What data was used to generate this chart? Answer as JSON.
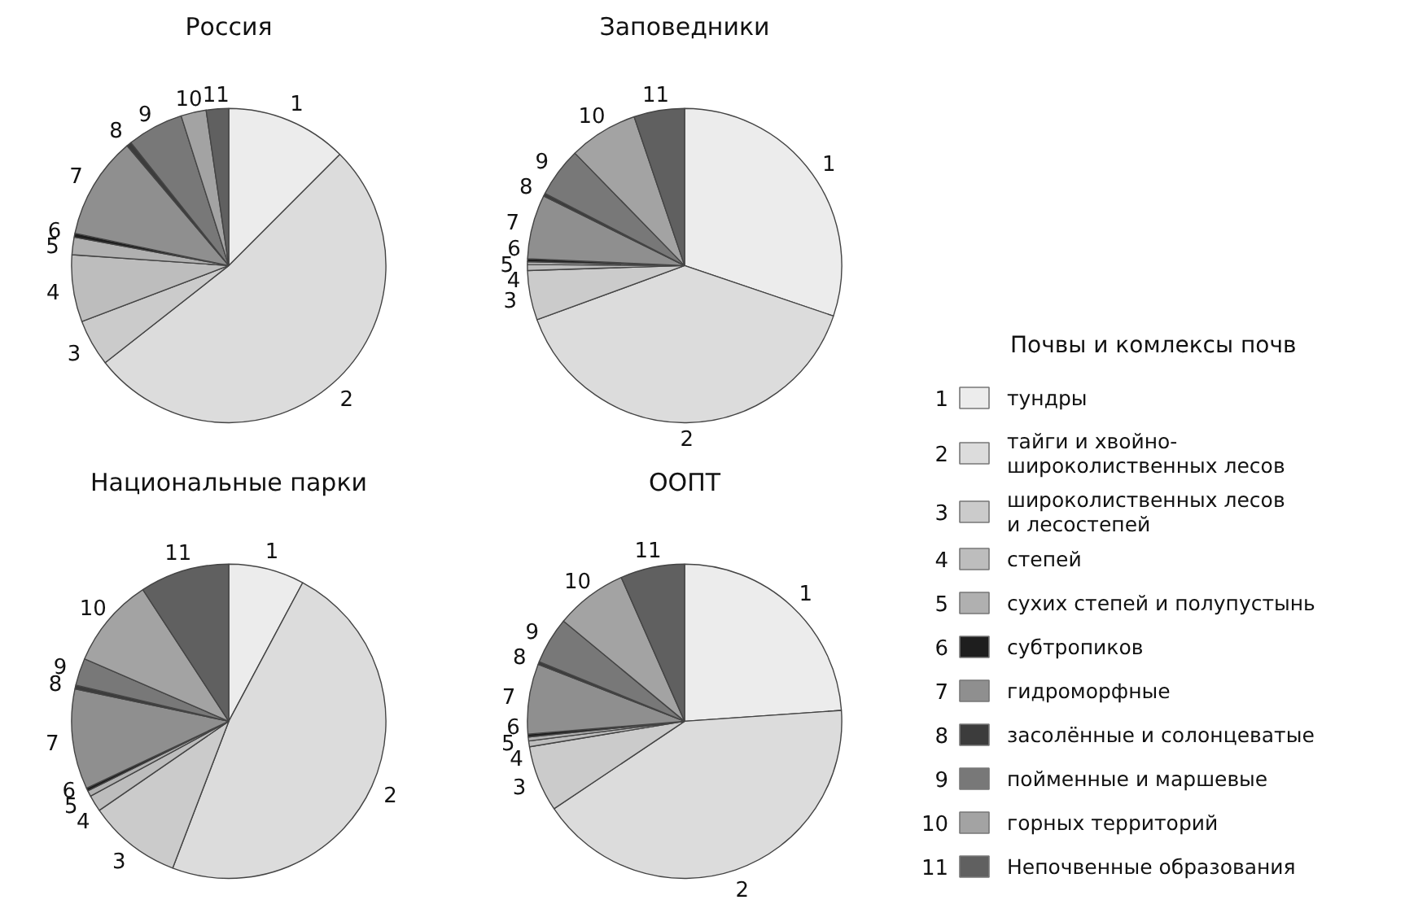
{
  "chart_data": [
    {
      "type": "pie",
      "title": "Россия",
      "legend": "right",
      "categories": [
        "1",
        "2",
        "3",
        "4",
        "5",
        "6",
        "7",
        "8",
        "9",
        "10",
        "11"
      ],
      "values": [
        12.5,
        51.9,
        4.8,
        6.9,
        1.8,
        0.4,
        10.5,
        0.5,
        5.8,
        2.6,
        2.3
      ],
      "colors": [
        "#ececec",
        "#dcdcdc",
        "#cbcbcb",
        "#bdbdbd",
        "#b0b0b0",
        "#1e1e1e",
        "#8f8f8f",
        "#3c3c3c",
        "#787878",
        "#a3a3a3",
        "#606060"
      ]
    },
    {
      "type": "pie",
      "title": "Заповедники",
      "categories": [
        "1",
        "2",
        "3",
        "4",
        "5",
        "6",
        "7",
        "8",
        "9",
        "10",
        "11"
      ],
      "values": [
        30.2,
        39.2,
        5.1,
        0.6,
        0.3,
        0.3,
        6.6,
        0.3,
        5.1,
        7.1,
        5.2
      ],
      "colors": [
        "#ececec",
        "#dcdcdc",
        "#cbcbcb",
        "#bdbdbd",
        "#b0b0b0",
        "#1e1e1e",
        "#8f8f8f",
        "#3c3c3c",
        "#787878",
        "#a3a3a3",
        "#606060"
      ]
    },
    {
      "type": "pie",
      "title": "Национальные парки",
      "categories": [
        "1",
        "2",
        "3",
        "4",
        "5",
        "6",
        "7",
        "8",
        "9",
        "10",
        "11"
      ],
      "values": [
        7.8,
        48.0,
        9.6,
        1.7,
        0.6,
        0.3,
        10.3,
        0.4,
        2.8,
        9.3,
        9.2
      ],
      "colors": [
        "#ececec",
        "#dcdcdc",
        "#cbcbcb",
        "#bdbdbd",
        "#b0b0b0",
        "#1e1e1e",
        "#8f8f8f",
        "#3c3c3c",
        "#787878",
        "#a3a3a3",
        "#606060"
      ]
    },
    {
      "type": "pie",
      "title": "ООПТ",
      "categories": [
        "1",
        "2",
        "3",
        "4",
        "5",
        "6",
        "7",
        "8",
        "9",
        "10",
        "11"
      ],
      "values": [
        23.9,
        41.7,
        6.8,
        0.6,
        0.4,
        0.3,
        7.2,
        0.3,
        4.8,
        7.4,
        6.6
      ],
      "colors": [
        "#ececec",
        "#dcdcdc",
        "#cbcbcb",
        "#bdbdbd",
        "#b0b0b0",
        "#1e1e1e",
        "#8f8f8f",
        "#3c3c3c",
        "#787878",
        "#a3a3a3",
        "#606060"
      ]
    },
    {
      "type": "other",
      "title": "Почвы и комлексы почв",
      "categories": [
        "1",
        "2",
        "3",
        "4",
        "5",
        "6",
        "7",
        "8",
        "9",
        "10",
        "11"
      ],
      "colors": [
        "#ececec",
        "#dcdcdc",
        "#cbcbcb",
        "#bdbdbd",
        "#b0b0b0",
        "#1e1e1e",
        "#8f8f8f",
        "#3c3c3c",
        "#787878",
        "#a3a3a3",
        "#606060"
      ],
      "annotations": [
        "тундры",
        "тайги и хвойно-\nшироколиственных лесов",
        "широколиственных лесов\nи лесостепей",
        "степей",
        "сухих степей и полупустынь",
        "субтропиков",
        "гидроморфные",
        "засолённые и солонцеватые",
        "пойменные и маршевые",
        "горных территорий",
        "Непочвенные образования"
      ]
    }
  ]
}
